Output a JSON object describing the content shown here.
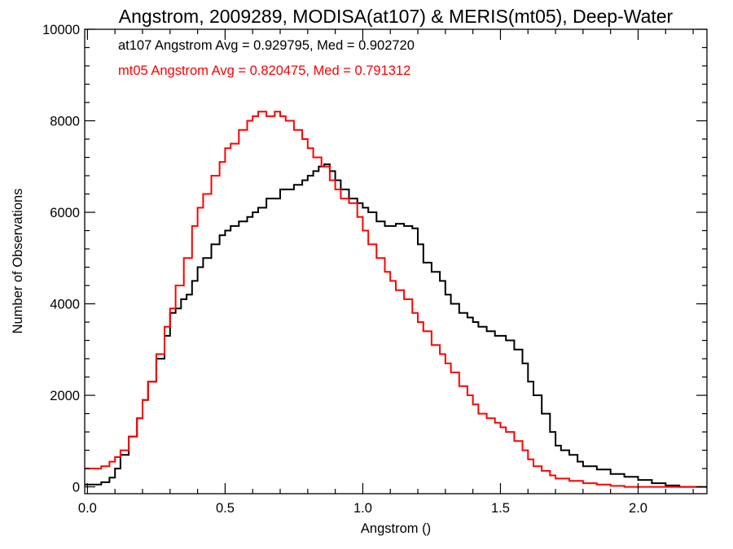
{
  "chart_data": {
    "type": "line",
    "title": "Angstrom, 2009289, MODISA(at107) & MERIS(mt05), Deep-Water",
    "xlabel": "Angstrom ()",
    "ylabel": "Number of Observations",
    "xlim": [
      -0.01,
      2.25
    ],
    "ylim": [
      -150,
      10000
    ],
    "xticks": [
      "0.0",
      "0.5",
      "1.0",
      "1.5",
      "2.0"
    ],
    "yticks": [
      "0",
      "2000",
      "4000",
      "6000",
      "8000",
      "10000"
    ],
    "annotations": [
      {
        "text": "at107 Angstrom Avg = 0.929795, Med = 0.902720",
        "color": "#000000"
      },
      {
        "text": "mt05 Angstrom Avg = 0.820475, Med = 0.791312",
        "color": "#ff0000"
      }
    ],
    "series": [
      {
        "color": "#000000",
        "x": [
          -0.01,
          0.05,
          0.08,
          0.1,
          0.12,
          0.15,
          0.18,
          0.2,
          0.22,
          0.25,
          0.28,
          0.3,
          0.32,
          0.34,
          0.36,
          0.38,
          0.4,
          0.42,
          0.45,
          0.48,
          0.5,
          0.52,
          0.55,
          0.58,
          0.6,
          0.62,
          0.65,
          0.68,
          0.7,
          0.72,
          0.75,
          0.78,
          0.8,
          0.82,
          0.84,
          0.86,
          0.88,
          0.9,
          0.92,
          0.95,
          0.98,
          1.0,
          1.02,
          1.05,
          1.08,
          1.1,
          1.12,
          1.15,
          1.18,
          1.2,
          1.22,
          1.25,
          1.28,
          1.3,
          1.32,
          1.35,
          1.38,
          1.4,
          1.42,
          1.45,
          1.48,
          1.5,
          1.52,
          1.55,
          1.58,
          1.6,
          1.62,
          1.65,
          1.68,
          1.7,
          1.72,
          1.75,
          1.78,
          1.8,
          1.85,
          1.9,
          1.95,
          2.0,
          2.05,
          2.1,
          2.15,
          2.18,
          2.25
        ],
        "y": [
          50,
          100,
          200,
          400,
          700,
          1100,
          1500,
          1900,
          2300,
          2800,
          3300,
          3800,
          3900,
          4100,
          4200,
          4500,
          4800,
          5000,
          5300,
          5500,
          5600,
          5700,
          5800,
          5900,
          6000,
          6100,
          6300,
          6300,
          6500,
          6500,
          6600,
          6700,
          6800,
          6900,
          7000,
          7050,
          6900,
          6700,
          6500,
          6300,
          6200,
          6100,
          6000,
          5800,
          5700,
          5700,
          5750,
          5700,
          5650,
          5300,
          4900,
          4700,
          4500,
          4200,
          4000,
          3800,
          3700,
          3600,
          3500,
          3400,
          3300,
          3300,
          3200,
          3000,
          2700,
          2300,
          2000,
          1600,
          1200,
          900,
          800,
          700,
          550,
          450,
          380,
          280,
          220,
          150,
          80,
          30,
          0,
          0,
          0
        ]
      },
      {
        "color": "#ff0000",
        "x": [
          -0.01,
          0.05,
          0.08,
          0.1,
          0.12,
          0.15,
          0.18,
          0.2,
          0.22,
          0.25,
          0.28,
          0.3,
          0.32,
          0.35,
          0.38,
          0.4,
          0.42,
          0.45,
          0.48,
          0.5,
          0.52,
          0.55,
          0.58,
          0.6,
          0.62,
          0.65,
          0.68,
          0.7,
          0.72,
          0.75,
          0.78,
          0.8,
          0.82,
          0.85,
          0.88,
          0.9,
          0.92,
          0.95,
          0.98,
          1.0,
          1.02,
          1.05,
          1.08,
          1.1,
          1.12,
          1.15,
          1.18,
          1.2,
          1.22,
          1.25,
          1.28,
          1.3,
          1.32,
          1.35,
          1.38,
          1.4,
          1.42,
          1.45,
          1.48,
          1.5,
          1.52,
          1.55,
          1.58,
          1.6,
          1.62,
          1.65,
          1.68,
          1.7,
          1.75,
          1.8,
          1.85,
          1.9,
          1.95,
          2.0,
          2.05,
          2.1,
          2.15,
          2.2,
          2.25
        ],
        "y": [
          400,
          450,
          550,
          650,
          800,
          1100,
          1500,
          1900,
          2300,
          2900,
          3500,
          3900,
          4400,
          5000,
          5700,
          6100,
          6400,
          6800,
          7100,
          7400,
          7500,
          7800,
          8000,
          8100,
          8200,
          8100,
          8200,
          8100,
          8000,
          7800,
          7600,
          7400,
          7200,
          7000,
          6700,
          6500,
          6300,
          6200,
          5900,
          5600,
          5300,
          5000,
          4700,
          4500,
          4300,
          4100,
          3800,
          3600,
          3400,
          3100,
          2900,
          2700,
          2500,
          2200,
          2000,
          1800,
          1600,
          1500,
          1400,
          1300,
          1200,
          1000,
          800,
          600,
          450,
          350,
          250,
          180,
          130,
          80,
          50,
          20,
          0,
          0,
          0,
          0,
          0,
          0,
          0
        ]
      }
    ]
  }
}
